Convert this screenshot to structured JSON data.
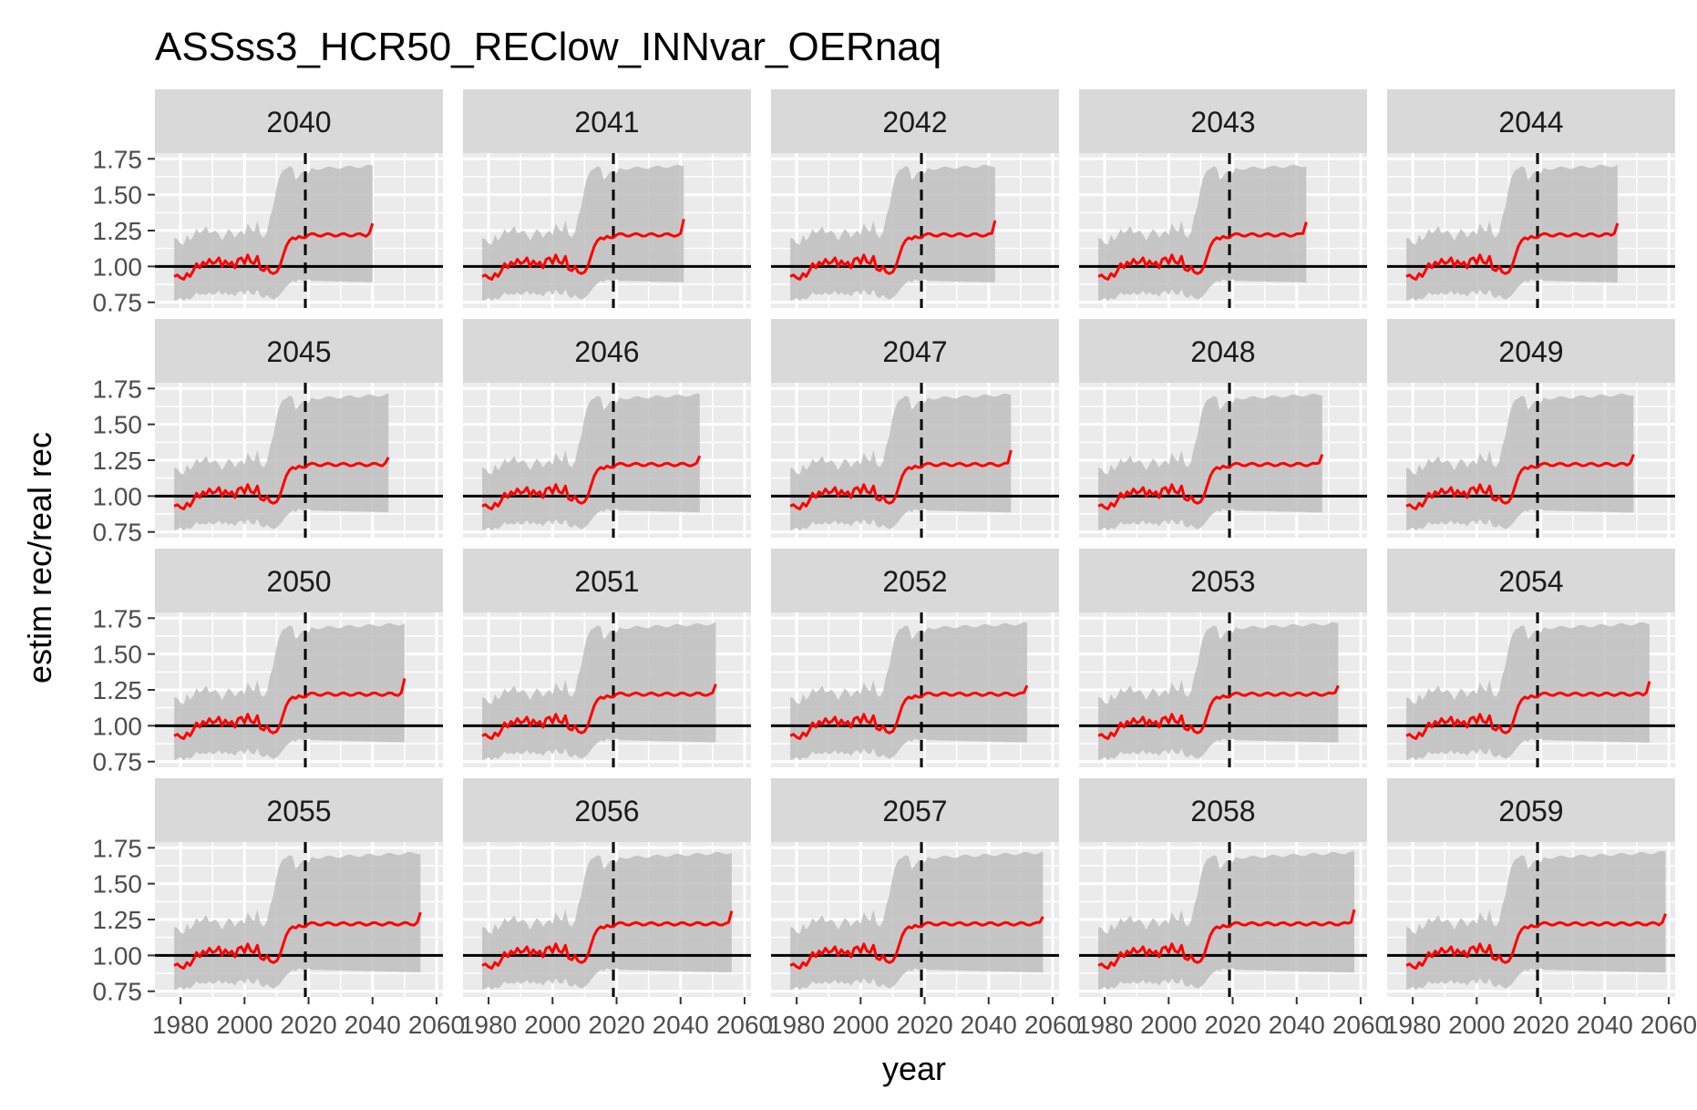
{
  "chart_data": {
    "type": "line",
    "title": "ASSss3_HCR50_REClow_INNvar_OERnaq",
    "xlabel": "year",
    "ylabel": "estim rec/real rec",
    "xlim": [
      1972,
      2062
    ],
    "ylim": [
      0.71,
      1.79
    ],
    "x_ticks": [
      1980,
      2000,
      2020,
      2040,
      2060
    ],
    "x_tick_labels": [
      "1980",
      "2000",
      "2020",
      "2040",
      "2060"
    ],
    "y_ticks": [
      0.75,
      1.0,
      1.25,
      1.5,
      1.75
    ],
    "y_tick_labels": [
      "0.75",
      "1.00",
      "1.25",
      "1.50",
      "1.75"
    ],
    "grid": true,
    "reference_hline": 1.0,
    "reference_vline": 2019,
    "colors": {
      "line": "#ff0000",
      "ribbon": "#bebebe",
      "panel_bg": "#ebebeb",
      "strip_bg": "#d9d9d9",
      "grid": "#ffffff",
      "reference": "#000000"
    },
    "facets": [
      {
        "label": "2040",
        "end_value": 1.3
      },
      {
        "label": "2041",
        "end_value": 1.33
      },
      {
        "label": "2042",
        "end_value": 1.32
      },
      {
        "label": "2043",
        "end_value": 1.31
      },
      {
        "label": "2044",
        "end_value": 1.3
      },
      {
        "label": "2045",
        "end_value": 1.27
      },
      {
        "label": "2046",
        "end_value": 1.28
      },
      {
        "label": "2047",
        "end_value": 1.32
      },
      {
        "label": "2048",
        "end_value": 1.29
      },
      {
        "label": "2049",
        "end_value": 1.29
      },
      {
        "label": "2050",
        "end_value": 1.33
      },
      {
        "label": "2051",
        "end_value": 1.29
      },
      {
        "label": "2052",
        "end_value": 1.28
      },
      {
        "label": "2053",
        "end_value": 1.28
      },
      {
        "label": "2054",
        "end_value": 1.31
      },
      {
        "label": "2055",
        "end_value": 1.3
      },
      {
        "label": "2056",
        "end_value": 1.31
      },
      {
        "label": "2057",
        "end_value": 1.27
      },
      {
        "label": "2058",
        "end_value": 1.32
      },
      {
        "label": "2059",
        "end_value": 1.29
      }
    ],
    "base_series": {
      "x": [
        1978,
        1979,
        1980,
        1981,
        1982,
        1983,
        1984,
        1985,
        1986,
        1987,
        1988,
        1989,
        1990,
        1991,
        1992,
        1993,
        1994,
        1995,
        1996,
        1997,
        1998,
        1999,
        2000,
        2001,
        2002,
        2003,
        2004,
        2005,
        2006,
        2007,
        2008,
        2009,
        2010,
        2011,
        2012,
        2013,
        2014,
        2015,
        2016,
        2017,
        2018,
        2019,
        2020
      ],
      "y": [
        0.93,
        0.94,
        0.92,
        0.91,
        0.95,
        0.93,
        0.97,
        1.02,
        0.99,
        1.03,
        1.01,
        1.05,
        1.02,
        1.03,
        1.06,
        1.0,
        1.04,
        1.01,
        1.03,
        0.99,
        1.05,
        1.06,
        1.02,
        1.08,
        1.03,
        1.02,
        1.07,
        0.98,
        0.97,
        1.0,
        0.96,
        0.95,
        0.96,
        1.0,
        1.07,
        1.14,
        1.18,
        1.2,
        1.19,
        1.21,
        1.2,
        1.2,
        1.22
      ],
      "ribbon_low": [
        0.76,
        0.77,
        0.78,
        0.76,
        0.78,
        0.77,
        0.79,
        0.82,
        0.8,
        0.81,
        0.8,
        0.82,
        0.8,
        0.81,
        0.83,
        0.8,
        0.82,
        0.8,
        0.81,
        0.79,
        0.82,
        0.83,
        0.8,
        0.84,
        0.81,
        0.8,
        0.84,
        0.79,
        0.78,
        0.8,
        0.78,
        0.77,
        0.78,
        0.8,
        0.83,
        0.86,
        0.88,
        0.9,
        0.89,
        0.91,
        0.9,
        0.9,
        0.91
      ],
      "ribbon_high": [
        1.2,
        1.19,
        1.16,
        1.15,
        1.22,
        1.18,
        1.21,
        1.26,
        1.23,
        1.25,
        1.28,
        1.23,
        1.24,
        1.25,
        1.22,
        1.18,
        1.22,
        1.26,
        1.24,
        1.2,
        1.23,
        1.25,
        1.22,
        1.3,
        1.26,
        1.24,
        1.32,
        1.22,
        1.2,
        1.24,
        1.35,
        1.42,
        1.55,
        1.63,
        1.67,
        1.68,
        1.7,
        1.69,
        1.6,
        1.63,
        1.66,
        1.66,
        1.65
      ],
      "tail_value": 1.22,
      "tail_ribbon_low": 0.9,
      "tail_ribbon_high": 1.68
    }
  }
}
